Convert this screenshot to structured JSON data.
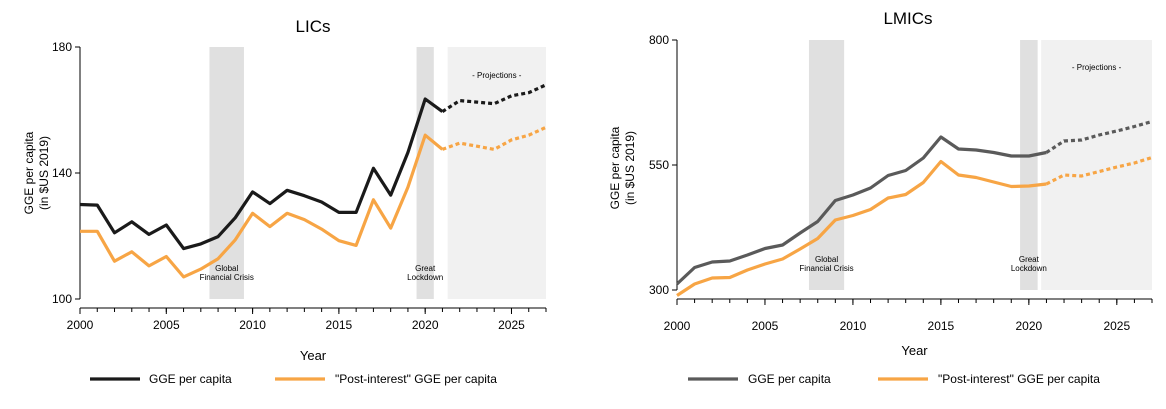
{
  "chart_data": [
    {
      "type": "line",
      "title": "LICs",
      "xlabel": "Year",
      "ylabel_lines": [
        "GGE per capita",
        "(in $US 2019)"
      ],
      "xlim": [
        2000,
        2027
      ],
      "ylim": [
        100,
        180
      ],
      "xticks": [
        2000,
        2005,
        2010,
        2015,
        2020,
        2025
      ],
      "yticks": [
        100,
        140,
        180
      ],
      "projection_start": 2021,
      "shaded_periods": [
        {
          "start": 2007.5,
          "end": 2009.5,
          "label_lines": [
            "Global",
            "Financial Crisis"
          ]
        },
        {
          "start": 2019.5,
          "end": 2020.5,
          "label_lines": [
            "Great",
            "Lockdown"
          ]
        }
      ],
      "projection_region": {
        "start": 2021.3,
        "end": 2027,
        "label": "- Projections -"
      },
      "legend_position": "bottom",
      "x": [
        2000,
        2001,
        2002,
        2003,
        2004,
        2005,
        2006,
        2007,
        2008,
        2009,
        2010,
        2011,
        2012,
        2013,
        2014,
        2015,
        2016,
        2017,
        2018,
        2019,
        2020,
        2021,
        2022,
        2023,
        2024,
        2025,
        2026,
        2027
      ],
      "series": [
        {
          "name": "GGE per capita",
          "color": "#1a1a1a",
          "values": [
            130,
            129.8,
            121,
            124.5,
            120.5,
            123.5,
            116,
            117.5,
            119.8,
            125.8,
            134,
            130.3,
            134.5,
            132.8,
            130.8,
            127.5,
            127.5,
            141.5,
            133,
            146.5,
            163.5,
            159.5,
            163,
            162.5,
            162,
            164.5,
            165.5,
            168
          ]
        },
        {
          "name": "\"Post-interest\" GGE per capita",
          "color": "#f7a545",
          "values": [
            121.5,
            121.5,
            112,
            115,
            110.5,
            113.5,
            107,
            109.5,
            112.8,
            118.8,
            127.2,
            123,
            127.2,
            125.2,
            122.2,
            118.5,
            117,
            131.5,
            122.5,
            135.5,
            152,
            147.5,
            149.5,
            148.5,
            147.5,
            150.5,
            152,
            154.5
          ]
        }
      ]
    },
    {
      "type": "line",
      "title": "LMICs",
      "xlabel": "Year",
      "ylabel_lines": [
        "GGE per capita",
        "(in $US 2019)"
      ],
      "xlim": [
        2000,
        2027
      ],
      "ylim": [
        300,
        800
      ],
      "xticks": [
        2000,
        2005,
        2010,
        2015,
        2020,
        2025
      ],
      "yticks": [
        300,
        550,
        800
      ],
      "projection_start": 2021,
      "shaded_periods": [
        {
          "start": 2007.5,
          "end": 2009.5,
          "label_lines": [
            "Global",
            "Financial Crisis"
          ]
        },
        {
          "start": 2019.5,
          "end": 2020.5,
          "label_lines": [
            "Great",
            "Lockdown"
          ]
        }
      ],
      "projection_region": {
        "start": 2020.7,
        "end": 2027,
        "label": "- Projections -"
      },
      "legend_position": "bottom",
      "x": [
        2000,
        2001,
        2002,
        2003,
        2004,
        2005,
        2006,
        2007,
        2008,
        2009,
        2010,
        2011,
        2012,
        2013,
        2014,
        2015,
        2016,
        2017,
        2018,
        2019,
        2020,
        2021,
        2022,
        2023,
        2024,
        2025,
        2026,
        2027
      ],
      "series": [
        {
          "name": "GGE per capita",
          "color": "#5a5a5a",
          "values": [
            312,
            345,
            356,
            358,
            370,
            383,
            390,
            414,
            437,
            479,
            490,
            504,
            529,
            539,
            564,
            606,
            582,
            580,
            575,
            568,
            568,
            575,
            598,
            600,
            610,
            618,
            627,
            637
          ]
        },
        {
          "name": "\"Post-interest\" GGE per capita",
          "color": "#f7a545",
          "values": [
            289,
            312,
            324,
            325,
            340,
            352,
            362,
            382,
            403,
            440,
            449,
            461,
            484,
            491,
            515,
            557,
            530,
            525,
            516,
            507,
            508,
            512,
            530,
            528,
            537,
            546,
            554,
            565
          ]
        }
      ]
    }
  ]
}
